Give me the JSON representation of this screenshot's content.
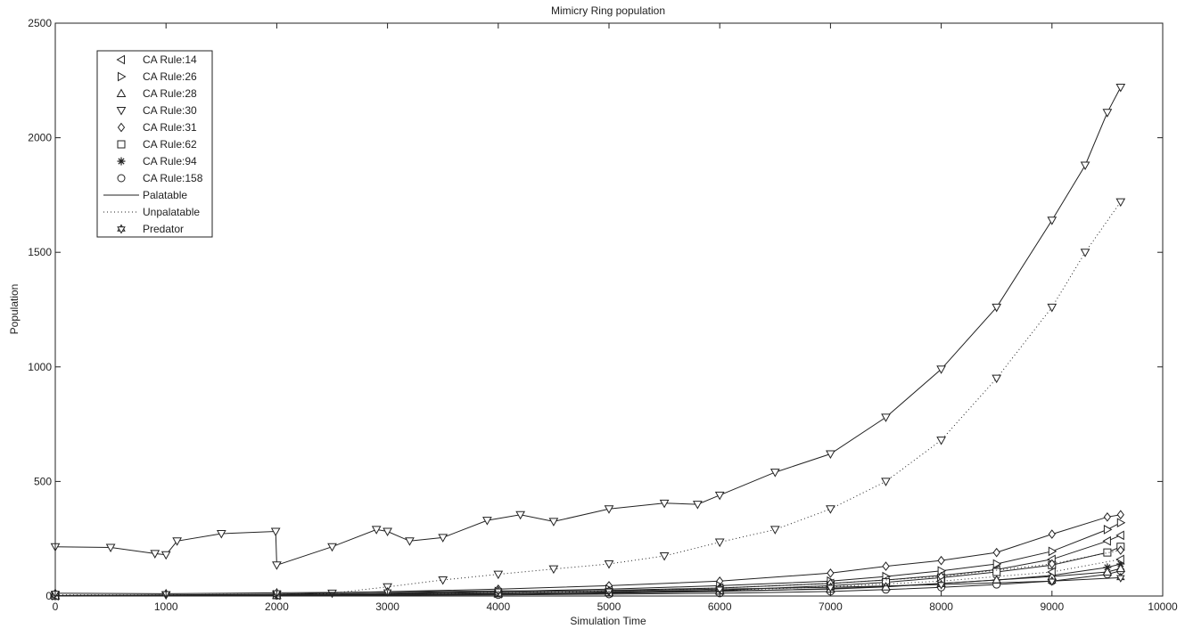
{
  "chart_data": {
    "type": "line",
    "title": "Mimicry Ring population",
    "xlabel": "Simulation Time",
    "ylabel": "Population",
    "xlim": [
      0,
      10000
    ],
    "ylim": [
      0,
      2500
    ],
    "xticks": [
      0,
      1000,
      2000,
      3000,
      4000,
      5000,
      6000,
      7000,
      8000,
      9000,
      10000
    ],
    "yticks": [
      0,
      500,
      1000,
      1500,
      2000,
      2500
    ],
    "grid": false,
    "legend_position": "top-left",
    "legend": [
      {
        "label": "CA Rule:14",
        "marker": "triangle-left"
      },
      {
        "label": "CA Rule:26",
        "marker": "triangle-right"
      },
      {
        "label": "CA Rule:28",
        "marker": "triangle-up"
      },
      {
        "label": "CA Rule:30",
        "marker": "triangle-down"
      },
      {
        "label": "CA Rule:31",
        "marker": "diamond"
      },
      {
        "label": "CA Rule:62",
        "marker": "square"
      },
      {
        "label": "CA Rule:94",
        "marker": "asterisk"
      },
      {
        "label": "CA Rule:158",
        "marker": "circle"
      },
      {
        "label": "Palatable",
        "marker": "solid-line"
      },
      {
        "label": "Unpalatable",
        "marker": "dotted-line"
      },
      {
        "label": "Predator",
        "marker": "hexagram"
      }
    ],
    "series": [
      {
        "rule": "CA Rule:30",
        "kind": "Palatable",
        "marker": "triangle-down",
        "style": "solid",
        "x": [
          0,
          500,
          900,
          1000,
          1100,
          1500,
          1990,
          2000,
          2500,
          2900,
          3000,
          3200,
          3500,
          3900,
          4200,
          4500,
          5000,
          5500,
          5800,
          6000,
          6500,
          7000,
          7500,
          8000,
          8500,
          9000,
          9300,
          9500,
          9620
        ],
        "y": [
          215,
          212,
          185,
          180,
          240,
          272,
          282,
          135,
          215,
          290,
          282,
          240,
          255,
          330,
          355,
          325,
          380,
          405,
          400,
          440,
          540,
          620,
          780,
          990,
          1260,
          1640,
          1880,
          2110,
          2220
        ]
      },
      {
        "rule": "CA Rule:30",
        "kind": "Unpalatable",
        "marker": "triangle-down",
        "style": "dotted",
        "x": [
          0,
          1000,
          2000,
          2500,
          3000,
          3500,
          4000,
          4500,
          5000,
          5500,
          6000,
          6500,
          7000,
          7500,
          8000,
          8500,
          9000,
          9300,
          9620
        ],
        "y": [
          5,
          5,
          8,
          12,
          40,
          70,
          95,
          118,
          140,
          175,
          235,
          290,
          380,
          500,
          680,
          950,
          1260,
          1500,
          1720
        ]
      },
      {
        "rule": "CA Rule:31",
        "kind": "Palatable",
        "marker": "diamond",
        "style": "solid",
        "x": [
          0,
          2000,
          4000,
          5000,
          6000,
          7000,
          7500,
          8000,
          8500,
          9000,
          9500,
          9620
        ],
        "y": [
          2,
          8,
          30,
          45,
          65,
          100,
          130,
          155,
          190,
          270,
          345,
          355
        ]
      },
      {
        "rule": "CA Rule:26",
        "kind": "Palatable",
        "marker": "triangle-right",
        "style": "solid",
        "x": [
          0,
          2000,
          4000,
          5000,
          6000,
          7000,
          7500,
          8000,
          8500,
          9000,
          9500,
          9620
        ],
        "y": [
          2,
          6,
          20,
          30,
          45,
          65,
          85,
          110,
          140,
          195,
          290,
          320
        ]
      },
      {
        "rule": "CA Rule:14",
        "kind": "Palatable",
        "marker": "triangle-left",
        "style": "solid",
        "x": [
          0,
          2000,
          4000,
          5000,
          6000,
          7000,
          7500,
          8000,
          8500,
          9000,
          9500,
          9620
        ],
        "y": [
          2,
          5,
          15,
          25,
          35,
          55,
          70,
          90,
          115,
          160,
          240,
          265
        ]
      },
      {
        "rule": "CA Rule:62",
        "kind": "Palatable",
        "marker": "square",
        "style": "solid",
        "x": [
          0,
          2000,
          4000,
          5000,
          6000,
          7000,
          7500,
          8000,
          8500,
          9000,
          9500,
          9620
        ],
        "y": [
          1,
          4,
          10,
          18,
          25,
          45,
          60,
          80,
          105,
          135,
          190,
          215
        ]
      },
      {
        "rule": "CA Rule:94",
        "kind": "Palatable",
        "marker": "asterisk",
        "style": "solid",
        "x": [
          0,
          2000,
          4000,
          5000,
          6000,
          7000,
          7500,
          8000,
          8500,
          9000,
          9500,
          9620
        ],
        "y": [
          1,
          3,
          8,
          12,
          20,
          32,
          42,
          55,
          70,
          90,
          125,
          140
        ]
      },
      {
        "rule": "CA Rule:158",
        "kind": "Palatable",
        "marker": "circle",
        "style": "solid",
        "x": [
          0,
          2000,
          4000,
          5000,
          6000,
          7000,
          7500,
          8000,
          8500,
          9000,
          9500,
          9620
        ],
        "y": [
          1,
          2,
          5,
          8,
          12,
          20,
          28,
          38,
          50,
          65,
          95,
          110
        ]
      },
      {
        "rule": "CA Rule:28",
        "kind": "Palatable",
        "marker": "triangle-up",
        "style": "solid",
        "x": [
          0,
          2000,
          4000,
          5000,
          6000,
          7000,
          7500,
          8000,
          8500,
          9000,
          9500,
          9620
        ],
        "y": [
          1,
          3,
          10,
          15,
          22,
          30,
          40,
          55,
          70,
          85,
          105,
          120
        ]
      },
      {
        "rule": "CA Rule:31",
        "kind": "Unpalatable",
        "marker": "diamond",
        "style": "dotted",
        "x": [
          0,
          2000,
          4000,
          5000,
          6000,
          7000,
          8000,
          9000,
          9620
        ],
        "y": [
          1,
          4,
          15,
          22,
          35,
          55,
          85,
          140,
          200
        ]
      },
      {
        "rule": "CA Rule:14",
        "kind": "Unpalatable",
        "marker": "triangle-left",
        "style": "dotted",
        "x": [
          0,
          2000,
          4000,
          5000,
          6000,
          7000,
          8000,
          9000,
          9620
        ],
        "y": [
          1,
          3,
          10,
          15,
          25,
          40,
          65,
          105,
          160
        ]
      },
      {
        "rule": "Predator",
        "kind": "Predator",
        "marker": "hexagram",
        "style": "solid",
        "x": [
          0,
          1000,
          2000,
          3000,
          4000,
          5000,
          6000,
          7000,
          8000,
          9000,
          9620
        ],
        "y": [
          12,
          10,
          14,
          18,
          22,
          22,
          30,
          38,
          50,
          65,
          80
        ]
      }
    ]
  }
}
